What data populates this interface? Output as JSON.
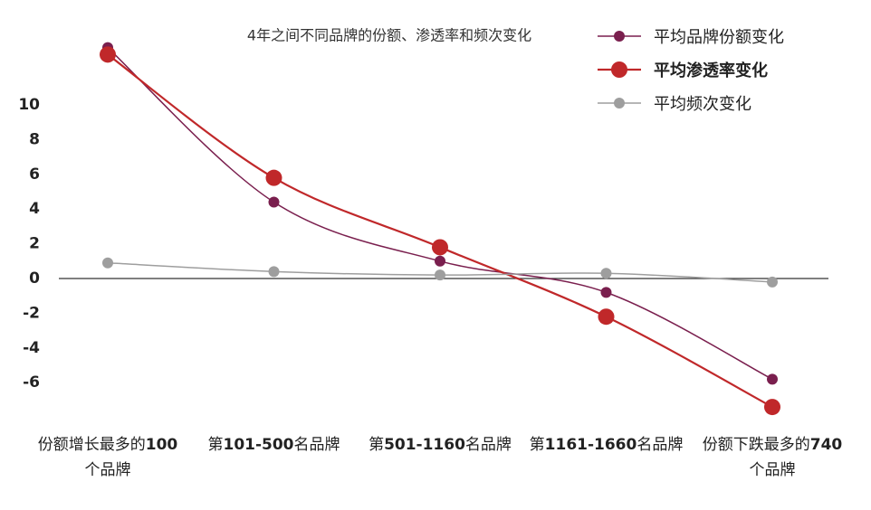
{
  "chart_data": {
    "type": "line",
    "title": "4年之间不同品牌的份额、渗透率和频次变化",
    "categories": [
      "份额增长最多的100个品牌",
      "第101-500名品牌",
      "第501-1160名品牌",
      "第1161-1660名品牌",
      "份额下跌最多的740个品牌"
    ],
    "series": [
      {
        "name": "平均品牌份额变化",
        "color": "#7a1f4e",
        "values": [
          13.3,
          4.4,
          1.0,
          -0.8,
          -5.8
        ]
      },
      {
        "name": "平均渗透率变化",
        "color": "#c0282a",
        "values": [
          12.9,
          5.8,
          1.8,
          -2.2,
          -7.4
        ]
      },
      {
        "name": "平均频次变化",
        "color": "#9e9e9e",
        "values": [
          0.9,
          0.4,
          0.2,
          0.3,
          -0.2
        ]
      }
    ],
    "ylim": [
      -8,
      14
    ],
    "yticks": [
      -6,
      -4,
      -2,
      0,
      2,
      4,
      6,
      8,
      10
    ],
    "legend": "top-right"
  }
}
